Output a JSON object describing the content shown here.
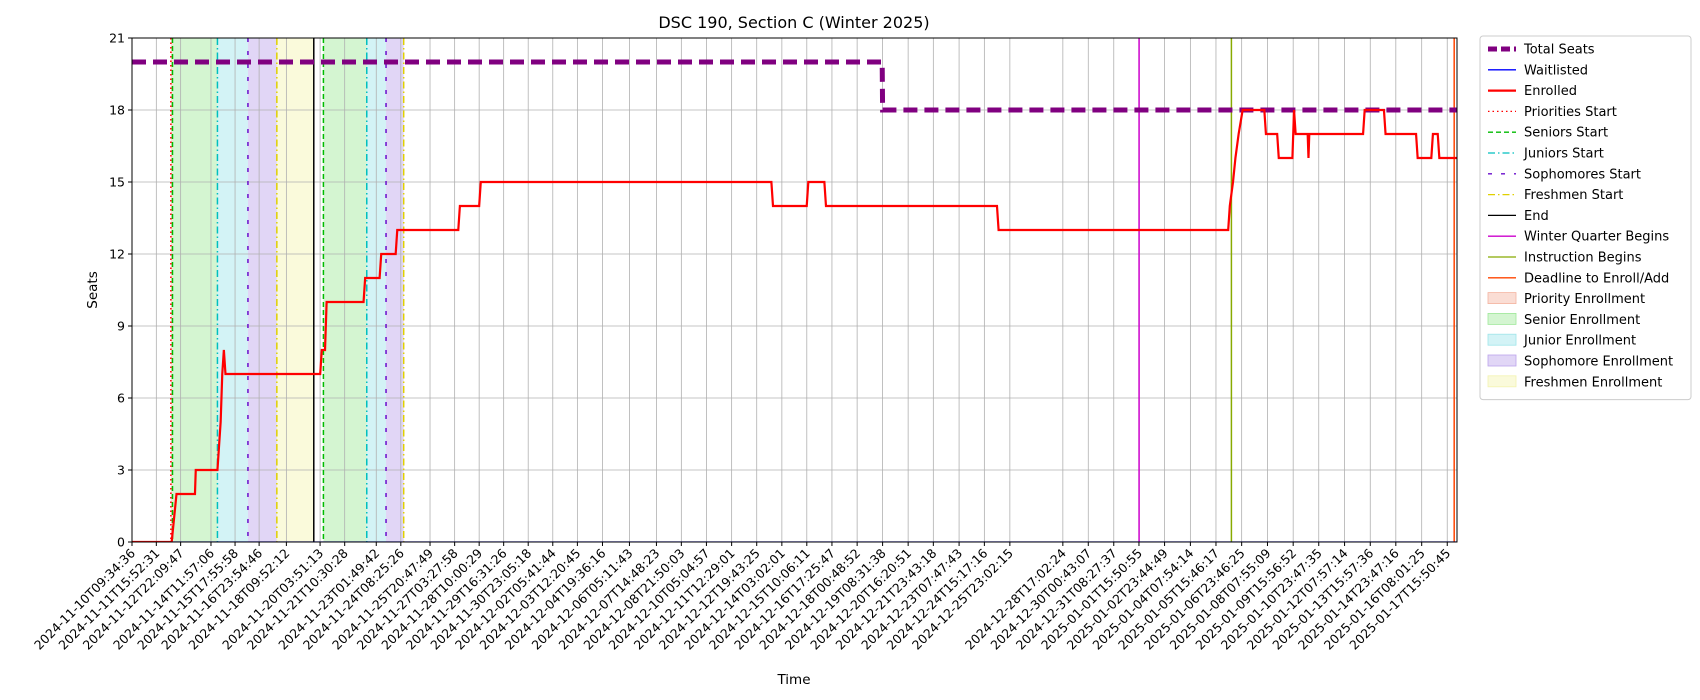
{
  "chart_data": {
    "type": "line",
    "title": "DSC 190, Section C (Winter 2025)",
    "xlabel": "Time",
    "ylabel": "Seats",
    "ylim": [
      0,
      21
    ],
    "yticks": [
      0,
      3,
      6,
      9,
      12,
      15,
      18,
      21
    ],
    "xlim": [
      "2024-11-10T09:34:36",
      "2025-01-18T04:00:00"
    ],
    "grid": true,
    "legend_position": "outside-right",
    "xticks": [
      "2024-11-10T09:34:36",
      "2024-11-11T15:52:31",
      "2024-11-12T22:09:47",
      "2024-11-14T11:57:06",
      "2024-11-15T17:55:58",
      "2024-11-16T23:54:46",
      "2024-11-18T09:52:12",
      "2024-11-20T03:51:13",
      "2024-11-21T10:30:28",
      "2024-11-23T01:49:42",
      "2024-11-24T08:25:26",
      "2024-11-25T20:47:49",
      "2024-11-27T03:27:58",
      "2024-11-28T10:00:29",
      "2024-11-29T16:31:26",
      "2024-11-30T23:05:18",
      "2024-12-02T05:41:44",
      "2024-12-03T12:20:45",
      "2024-12-04T19:36:16",
      "2024-12-06T05:11:43",
      "2024-12-07T14:48:23",
      "2024-12-08T21:50:03",
      "2024-12-10T05:04:57",
      "2024-12-11T12:29:01",
      "2024-12-12T19:43:25",
      "2024-12-14T03:02:01",
      "2024-12-15T10:06:11",
      "2024-12-16T17:25:47",
      "2024-12-18T00:48:52",
      "2024-12-19T08:31:38",
      "2024-12-20T16:20:51",
      "2024-12-21T23:43:18",
      "2024-12-23T07:47:43",
      "2024-12-24T15:17:16",
      "2024-12-25T23:02:15",
      "2024-12-28T17:02:24",
      "2024-12-30T00:43:07",
      "2024-12-31T08:27:37",
      "2025-01-01T15:50:55",
      "2025-01-02T23:44:49",
      "2025-01-04T07:54:14",
      "2025-01-05T15:46:17",
      "2025-01-06T23:46:25",
      "2025-01-08T07:55:09",
      "2025-01-09T15:56:52",
      "2025-01-10T23:47:35",
      "2025-01-12T07:57:14",
      "2025-01-13T15:57:36",
      "2025-01-14T23:47:16",
      "2025-01-16T08:01:25",
      "2025-01-17T15:50:45"
    ],
    "series": [
      {
        "name": "Total Seats",
        "color": "#800080",
        "style": "dashed-thick",
        "points": [
          [
            "2024-11-10T09:34:36",
            20
          ],
          [
            "2024-12-19T08:00:00",
            20
          ],
          [
            "2024-12-19T08:31:38",
            18
          ],
          [
            "2025-01-18T04:00:00",
            18
          ]
        ]
      },
      {
        "name": "Waitlisted",
        "color": "#0000ff",
        "style": "solid",
        "points": [
          [
            "2024-11-10T09:34:36",
            0
          ],
          [
            "2025-01-18T04:00:00",
            0
          ]
        ]
      },
      {
        "name": "Enrolled",
        "color": "#ff0000",
        "style": "solid-thick",
        "points": [
          [
            "2024-11-10T09:34:36",
            0
          ],
          [
            "2024-11-12T11:00:00",
            0
          ],
          [
            "2024-11-12T14:00:00",
            1
          ],
          [
            "2024-11-12T17:00:00",
            2
          ],
          [
            "2024-11-13T16:00:00",
            2
          ],
          [
            "2024-11-13T17:00:00",
            3
          ],
          [
            "2024-11-14T20:00:00",
            3
          ],
          [
            "2024-11-15T00:00:00",
            5
          ],
          [
            "2024-11-15T02:00:00",
            7
          ],
          [
            "2024-11-15T04:00:00",
            8
          ],
          [
            "2024-11-15T06:00:00",
            7
          ],
          [
            "2024-11-20T04:00:00",
            7
          ],
          [
            "2024-11-20T06:00:00",
            8
          ],
          [
            "2024-11-20T10:00:00",
            8
          ],
          [
            "2024-11-20T12:00:00",
            10
          ],
          [
            "2024-11-22T10:00:00",
            10
          ],
          [
            "2024-11-22T12:00:00",
            11
          ],
          [
            "2024-11-23T06:00:00",
            11
          ],
          [
            "2024-11-23T08:00:00",
            12
          ],
          [
            "2024-11-24T02:00:00",
            12
          ],
          [
            "2024-11-24T04:00:00",
            13
          ],
          [
            "2024-11-27T08:00:00",
            13
          ],
          [
            "2024-11-27T10:00:00",
            14
          ],
          [
            "2024-11-28T10:00:00",
            14
          ],
          [
            "2024-11-28T12:00:00",
            15
          ],
          [
            "2024-12-13T14:00:00",
            15
          ],
          [
            "2024-12-13T16:00:00",
            14
          ],
          [
            "2024-12-15T10:00:00",
            14
          ],
          [
            "2024-12-15T12:00:00",
            15
          ],
          [
            "2024-12-16T08:00:00",
            15
          ],
          [
            "2024-12-16T10:00:00",
            14
          ],
          [
            "2024-12-25T07:00:00",
            14
          ],
          [
            "2024-12-25T09:00:00",
            13
          ],
          [
            "2025-01-06T07:00:00",
            13
          ],
          [
            "2025-01-06T09:00:00",
            14
          ],
          [
            "2025-01-06T13:00:00",
            15
          ],
          [
            "2025-01-06T16:00:00",
            16
          ],
          [
            "2025-01-06T20:00:00",
            17
          ],
          [
            "2025-01-07T01:00:00",
            18
          ],
          [
            "2025-01-08T04:00:00",
            18
          ],
          [
            "2025-01-08T06:00:00",
            17
          ],
          [
            "2025-01-08T20:00:00",
            17
          ],
          [
            "2025-01-08T22:00:00",
            16
          ],
          [
            "2025-01-09T15:00:00",
            16
          ],
          [
            "2025-01-09T17:00:00",
            18
          ],
          [
            "2025-01-09T19:00:00",
            17
          ],
          [
            "2025-01-10T10:00:00",
            17
          ],
          [
            "2025-01-10T11:00:00",
            16
          ],
          [
            "2025-01-10T12:00:00",
            17
          ],
          [
            "2025-01-13T07:00:00",
            17
          ],
          [
            "2025-01-13T09:00:00",
            18
          ],
          [
            "2025-01-14T09:00:00",
            18
          ],
          [
            "2025-01-14T11:00:00",
            17
          ],
          [
            "2025-01-16T01:00:00",
            17
          ],
          [
            "2025-01-16T03:00:00",
            16
          ],
          [
            "2025-01-16T20:00:00",
            16
          ],
          [
            "2025-01-16T22:00:00",
            17
          ],
          [
            "2025-01-17T04:00:00",
            17
          ],
          [
            "2025-01-17T06:00:00",
            16
          ],
          [
            "2025-01-18T04:00:00",
            16
          ]
        ]
      }
    ],
    "vlines": [
      {
        "name": "Priorities Start",
        "color": "#ff0000",
        "style": "dotted",
        "x": [
          "2024-11-12T10:00:00"
        ]
      },
      {
        "name": "Seniors Start",
        "color": "#00bb00",
        "style": "dashed",
        "x": [
          "2024-11-12T12:00:00",
          "2024-11-20T08:00:00"
        ]
      },
      {
        "name": "Juniors Start",
        "color": "#00bfbf",
        "style": "dashdot",
        "x": [
          "2024-11-14T20:00:00",
          "2024-11-22T14:00:00"
        ]
      },
      {
        "name": "Sophomores Start",
        "color": "#6a0dcc",
        "style": "loosedash",
        "x": [
          "2024-11-16T10:00:00",
          "2024-11-23T14:00:00"
        ]
      },
      {
        "name": "Freshmen Start",
        "color": "#e0d000",
        "style": "dashdot",
        "x": [
          "2024-11-17T22:00:00",
          "2024-11-24T12:00:00"
        ]
      },
      {
        "name": "End",
        "color": "#000000",
        "style": "solid",
        "x": [
          "2024-11-19T20:00:00"
        ]
      },
      {
        "name": "Winter Quarter Begins",
        "color": "#cc00cc",
        "style": "solid",
        "x": [
          "2025-01-01T16:00:00"
        ]
      },
      {
        "name": "Instruction Begins",
        "color": "#88aa00",
        "style": "solid",
        "x": [
          "2025-01-06T11:00:00"
        ]
      },
      {
        "name": "Deadline to Enroll/Add",
        "color": "#ff4400",
        "style": "solid",
        "x": [
          "2025-01-18T00:30:00"
        ]
      }
    ],
    "spans": [
      {
        "name": "Priority Enrollment",
        "color": "#f4b4a0",
        "ranges": [
          [
            "2024-11-12T10:00:00",
            "2024-11-12T12:00:00"
          ]
        ]
      },
      {
        "name": "Senior Enrollment",
        "color": "#9fe89a",
        "ranges": [
          [
            "2024-11-12T12:00:00",
            "2024-11-14T20:00:00"
          ],
          [
            "2024-11-20T08:00:00",
            "2024-11-22T14:00:00"
          ]
        ]
      },
      {
        "name": "Junior Enrollment",
        "color": "#9ee5ea",
        "ranges": [
          [
            "2024-11-14T20:00:00",
            "2024-11-16T10:00:00"
          ],
          [
            "2024-11-22T14:00:00",
            "2024-11-23T14:00:00"
          ]
        ]
      },
      {
        "name": "Sophomore Enrollment",
        "color": "#bda4ec",
        "ranges": [
          [
            "2024-11-16T10:00:00",
            "2024-11-17T22:00:00"
          ],
          [
            "2024-11-23T14:00:00",
            "2024-11-24T12:00:00"
          ]
        ]
      },
      {
        "name": "Freshmen Enrollment",
        "color": "#f3f3b0",
        "ranges": [
          [
            "2024-11-17T22:00:00",
            "2024-11-19T20:00:00"
          ]
        ]
      }
    ]
  }
}
